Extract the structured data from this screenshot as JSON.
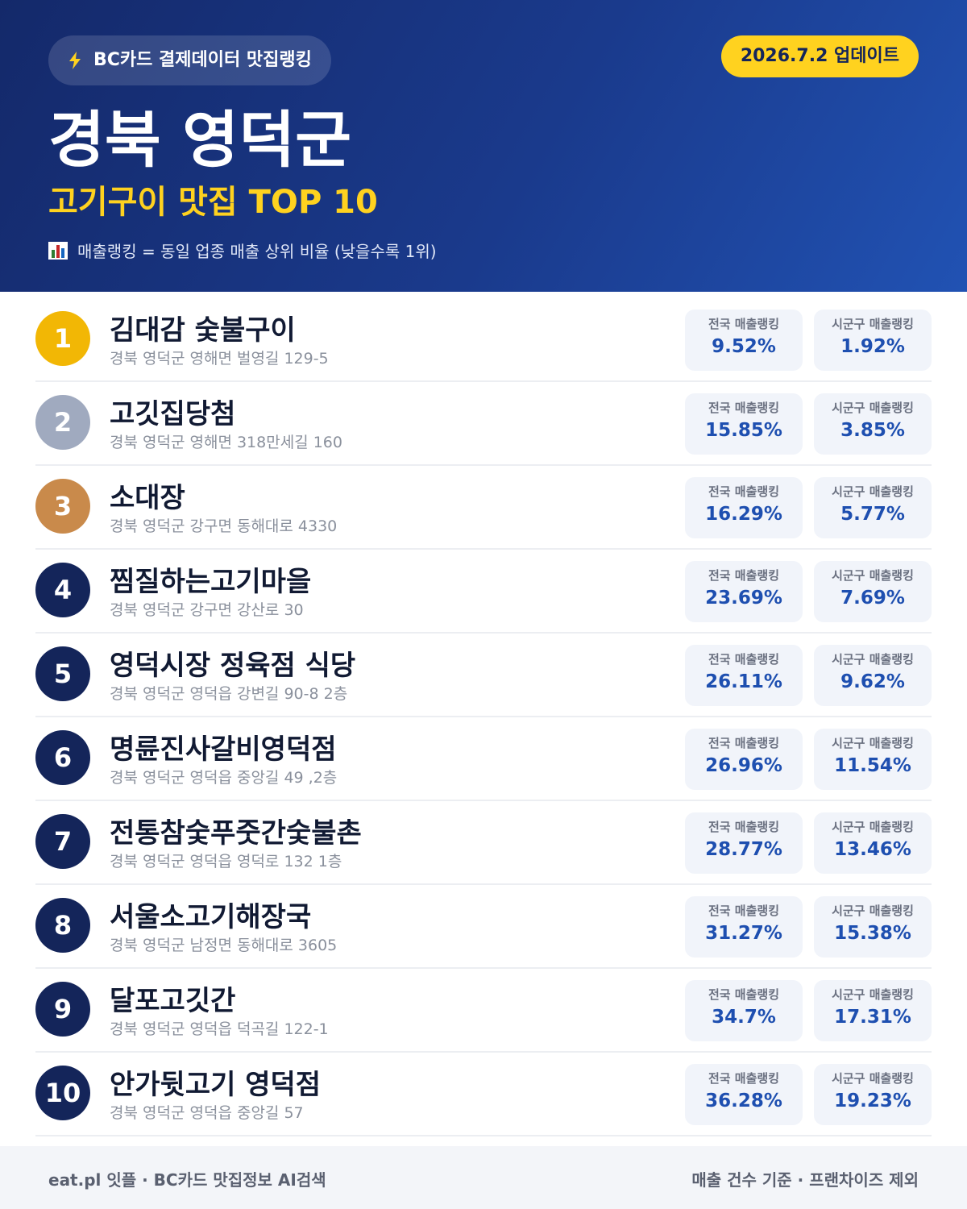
{
  "header": {
    "badge": "BC카드 결제데이터 맛집랭킹",
    "update": "2026.7.2 업데이트",
    "title": "경북 영덕군",
    "subtitle": "고기구이 맛집 TOP 10",
    "note": "매출랭킹 = 동일 업종 매출 상위 비율 (낮을수록 1위)"
  },
  "labels": {
    "national": "전국 매출랭킹",
    "local": "시군구 매출랭킹"
  },
  "rows": [
    {
      "rank": 1,
      "name": "김대감 숯불구이",
      "address": "경북 영덕군 영해면 벌영길 129-5",
      "national": "9.52%",
      "local": "1.92%"
    },
    {
      "rank": 2,
      "name": "고깃집당첨",
      "address": "경북 영덕군 영해면 318만세길 160",
      "national": "15.85%",
      "local": "3.85%"
    },
    {
      "rank": 3,
      "name": "소대장",
      "address": "경북 영덕군 강구면 동해대로 4330",
      "national": "16.29%",
      "local": "5.77%"
    },
    {
      "rank": 4,
      "name": "찜질하는고기마을",
      "address": "경북 영덕군 강구면 강산로 30",
      "national": "23.69%",
      "local": "7.69%"
    },
    {
      "rank": 5,
      "name": "영덕시장 정육점 식당",
      "address": "경북 영덕군 영덕읍 강변길 90-8 2층",
      "national": "26.11%",
      "local": "9.62%"
    },
    {
      "rank": 6,
      "name": "명륜진사갈비영덕점",
      "address": "경북 영덕군 영덕읍 중앙길 49 ,2층",
      "national": "26.96%",
      "local": "11.54%"
    },
    {
      "rank": 7,
      "name": "전통참숯푸줏간숯불촌",
      "address": "경북 영덕군 영덕읍 영덕로 132 1층",
      "national": "28.77%",
      "local": "13.46%"
    },
    {
      "rank": 8,
      "name": "서울소고기해장국",
      "address": "경북 영덕군 남정면 동해대로 3605",
      "national": "31.27%",
      "local": "15.38%"
    },
    {
      "rank": 9,
      "name": "달포고깃간",
      "address": "경북 영덕군 영덕읍 덕곡길 122-1",
      "national": "34.7%",
      "local": "17.31%"
    },
    {
      "rank": 10,
      "name": "안가뒷고기 영덕점",
      "address": "경북 영덕군 영덕읍 중앙길 57",
      "national": "36.28%",
      "local": "19.23%"
    }
  ],
  "footer": {
    "left": "eat.pl 잇플 · BC카드 맛집정보 AI검색",
    "right": "매출 건수 기준 · 프랜차이즈 제외"
  }
}
